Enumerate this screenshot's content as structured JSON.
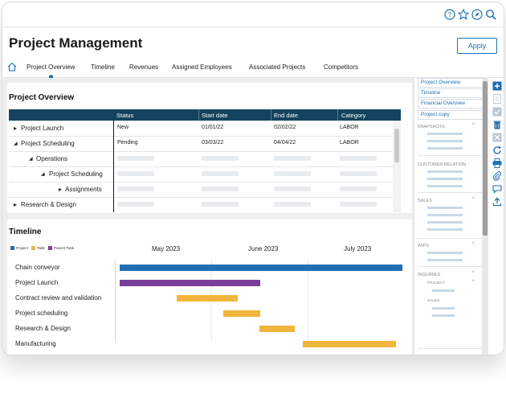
{
  "app": {
    "title": "Project Management",
    "apply_label": "Apply",
    "top_icons": [
      "help-icon",
      "star-icon",
      "compass-icon",
      "search-icon"
    ]
  },
  "tabs": [
    {
      "label": "Project Overview",
      "active": true
    },
    {
      "label": "Timeline"
    },
    {
      "label": "Revenues"
    },
    {
      "label": "Assigned Employees"
    },
    {
      "label": "Associated Projects"
    },
    {
      "label": "Competitors"
    }
  ],
  "overview": {
    "title": "Project Overview",
    "columns": [
      "Status",
      "Start date",
      "End date",
      "Category"
    ],
    "rows": [
      {
        "name": "Project Launch",
        "caret": "▸",
        "status": "New",
        "start": "01/01/22",
        "end": "02/02/22",
        "category": "LABOR"
      },
      {
        "name": "Project Scheduling",
        "caret": "◢",
        "status": "Pending",
        "start": "03/03/22",
        "end": "04/04/22",
        "category": "LABOR"
      },
      {
        "name": "Operations",
        "caret": "◢"
      },
      {
        "name": "Project Scheduling",
        "caret": "◢"
      },
      {
        "name": "Assignments",
        "caret": "▸"
      },
      {
        "name": "Research & Design",
        "caret": "▸"
      }
    ]
  },
  "timeline": {
    "title": "Timeline",
    "legend": [
      {
        "label": "Project",
        "color": "#1f6fb2"
      },
      {
        "label": "Task",
        "color": "#f0b53b"
      },
      {
        "label": "Parent Task",
        "color": "#7a3f9a"
      }
    ],
    "months": [
      "May 2023",
      "June 2023",
      "July 2023"
    ],
    "rows": [
      {
        "name": "Chain conveyor"
      },
      {
        "name": "Project Launch"
      },
      {
        "name": "Contract review and validation"
      },
      {
        "name": "Project scheduling"
      },
      {
        "name": "Research & Design"
      },
      {
        "name": "Manufacturing"
      }
    ]
  },
  "sidebar": {
    "links": [
      "Project Overview",
      "Timeline",
      "Financial Overview",
      "Project copy"
    ],
    "groups": [
      "SNAPSHOTS",
      "CUSTOMER RELATION",
      "SALES",
      "WIPS",
      "INQUIRIES"
    ],
    "subgroups": [
      "PROJECT",
      "SALES"
    ]
  },
  "toolbar": {
    "icons": [
      "add-icon",
      "document-icon",
      "check-icon",
      "trash-icon",
      "close-icon",
      "refresh-icon",
      "print-icon",
      "attach-icon",
      "comment-icon",
      "upload-icon"
    ]
  }
}
